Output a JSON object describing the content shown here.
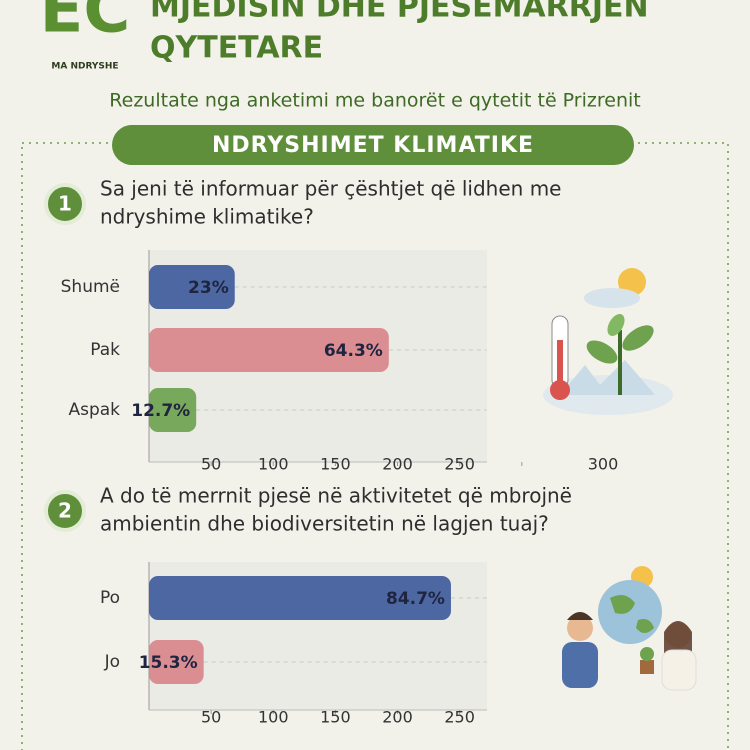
{
  "header": {
    "logo": "EC",
    "logo_tagline": "MA NDRYSHE",
    "title_lines": [
      "MJEDISIN DHE PJESËMARRJEN",
      "QYTETARE"
    ],
    "subtitle": "Rezultate nga anketimi me banorët e qytetit të Prizrenit",
    "section": "NDRYSHIMET KLIMATIKE"
  },
  "chart_data": [
    {
      "type": "bar",
      "orientation": "horizontal",
      "number": "1",
      "title_lines": [
        "Sa jeni të informuar për çështjet që lidhen me",
        "ndryshime klimatike?"
      ],
      "categories": [
        "Shumë",
        "Pak",
        "Aspak"
      ],
      "values": [
        69,
        193,
        38
      ],
      "value_labels": [
        "23%",
        "64.3%",
        "12.7%"
      ],
      "colors": [
        "#3f5b9c",
        "#d8868b",
        "#6ea24f"
      ],
      "xlim": [
        0,
        272
      ],
      "xticks": [
        50,
        100,
        150,
        200,
        250,
        300
      ]
    },
    {
      "type": "bar",
      "orientation": "horizontal",
      "number": "2",
      "title_lines": [
        "A do të merrnit pjesë në aktivitetet që mbrojnë",
        "ambientin dhe biodiversitetin në lagjen tuaj?"
      ],
      "categories": [
        "Po",
        "Jo"
      ],
      "values": [
        243,
        44
      ],
      "value_labels": [
        "84.7%",
        "15.3%"
      ],
      "colors": [
        "#3f5b9c",
        "#d8868b"
      ],
      "xlim": [
        0,
        272
      ],
      "xticks": [
        50,
        100,
        150,
        200,
        250
      ]
    }
  ]
}
